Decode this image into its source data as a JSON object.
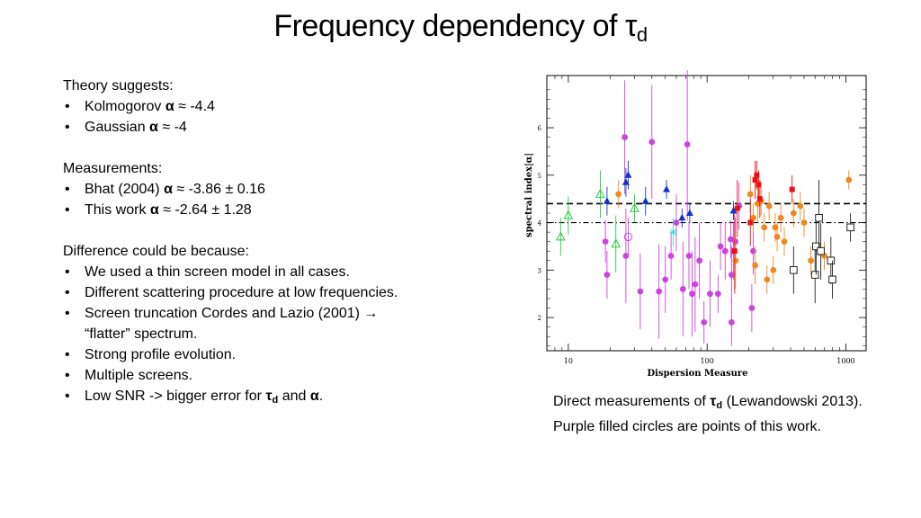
{
  "slide": {
    "title_main": "Frequency dependency of τ",
    "title_sub": "d"
  },
  "theory": {
    "heading": "Theory suggests:",
    "kolmogorov_label": "Kolmogorov ",
    "kolmogorov_alpha": "α",
    "kolmogorov_value": " ≈ -4.4",
    "gaussian_label": "Gaussian ",
    "gaussian_alpha": "α",
    "gaussian_value": " ≈ -4"
  },
  "measurements": {
    "heading": "Measurements:",
    "bhat_label": "Bhat (2004) ",
    "bhat_alpha": "α",
    "bhat_value": " ≈ -3.86 ± 0.16",
    "this_label": "This work ",
    "this_alpha": "α",
    "this_value": " ≈ -2.64 ± 1.28"
  },
  "difference": {
    "heading": "Difference could be because:",
    "items": [
      "We used a thin screen model in all cases.",
      "Different scattering procedure at low frequencies.",
      "Screen truncation Cordes and Lazio (2001) →",
      "“flatter” spectrum.",
      "Strong profile evolution.",
      "Multiple screens."
    ],
    "last_prefix": "Low SNR -> bigger error for ",
    "last_tau": "τ",
    "last_tau_sub": "d",
    "last_mid": " and ",
    "last_alpha": "α",
    "last_end": "."
  },
  "caption": {
    "prefix": "Direct measurements of ",
    "tau": "τ",
    "tau_sub": "d",
    "rest": " (Lewandowski 2013). Purple filled circles are points of this work."
  },
  "chart_data": {
    "type": "scatter",
    "xlabel": "Dispersion Measure",
    "ylabel": "spectral index|α|",
    "xscale": "log",
    "xlim": [
      7,
      1400
    ],
    "ylim": [
      1.3,
      7.1
    ],
    "xticks": [
      10,
      100,
      1000
    ],
    "xtick_labels": [
      "10",
      "100",
      "1000"
    ],
    "yticks": [
      2,
      3,
      4,
      5,
      6
    ],
    "ytick_labels": [
      "2",
      "3",
      "4",
      "5",
      "6"
    ],
    "hlines": [
      {
        "y": 4.4,
        "style": "dashed"
      },
      {
        "y": 4.0,
        "style": "dashdot"
      }
    ],
    "series": [
      {
        "marker": "circle-filled",
        "color": "#cc44dd",
        "points": [
          [
            18.5,
            3.6,
            0.45
          ],
          [
            19,
            2.9,
            0.5
          ],
          [
            25.5,
            5.8,
            1.2
          ],
          [
            26,
            3.3,
            1.0
          ],
          [
            33,
            2.55,
            0.8
          ],
          [
            40,
            5.7,
            1.2
          ],
          [
            45,
            2.55,
            1.0
          ],
          [
            50,
            2.8,
            0.7
          ],
          [
            55,
            3.3,
            0.5
          ],
          [
            60,
            4.0,
            0.6
          ],
          [
            67,
            2.6,
            1.0
          ],
          [
            72,
            5.65,
            1.6
          ],
          [
            74,
            3.3,
            0.7
          ],
          [
            78,
            2.5,
            0.9
          ],
          [
            82,
            2.7,
            1.0
          ],
          [
            88,
            3.2,
            0.8
          ],
          [
            95,
            1.9,
            0.45
          ],
          [
            105,
            2.5,
            0.7
          ],
          [
            120,
            2.5,
            0.4
          ],
          [
            125,
            3.5,
            0.5
          ],
          [
            135,
            3.4,
            0.6
          ],
          [
            148,
            3.65,
            0.4
          ],
          [
            150,
            2.9,
            0.6
          ],
          [
            150,
            1.9,
            0.5
          ],
          [
            155,
            3.4,
            0.6
          ],
          [
            160,
            3.6,
            0.5
          ],
          [
            170,
            4.35,
            0.5
          ],
          [
            210,
            2.2,
            0.5
          ],
          [
            215,
            3.4,
            0.5
          ]
        ]
      },
      {
        "marker": "circle-filled",
        "color": "#ee8822",
        "points": [
          [
            23,
            4.6,
            0.3
          ],
          [
            160,
            3.2,
            0.6
          ],
          [
            205,
            4.6,
            0.4
          ],
          [
            215,
            4.1,
            0.3
          ],
          [
            222,
            3.1,
            0.4
          ],
          [
            232,
            4.4,
            0.4
          ],
          [
            245,
            4.45,
            0.3
          ],
          [
            258,
            3.9,
            0.3
          ],
          [
            270,
            2.8,
            0.3
          ],
          [
            280,
            4.35,
            0.3
          ],
          [
            300,
            3.0,
            0.3
          ],
          [
            310,
            3.9,
            0.3
          ],
          [
            320,
            3.7,
            0.3
          ],
          [
            340,
            4.1,
            0.3
          ],
          [
            360,
            3.6,
            0.3
          ],
          [
            420,
            4.2,
            0.3
          ],
          [
            470,
            4.35,
            0.3
          ],
          [
            500,
            4.0,
            0.3
          ],
          [
            560,
            3.2,
            0.3
          ],
          [
            700,
            3.3,
            0.3
          ],
          [
            1050,
            4.9,
            0.2
          ]
        ]
      },
      {
        "marker": "square-filled",
        "color": "#ee1111",
        "points": [
          [
            158,
            3.4,
            0.9
          ],
          [
            165,
            4.3,
            0.6
          ],
          [
            205,
            4.0,
            0.5
          ],
          [
            222,
            4.9,
            0.4
          ],
          [
            228,
            5.0,
            0.3
          ],
          [
            235,
            4.8,
            0.3
          ],
          [
            240,
            4.5,
            0.4
          ],
          [
            410,
            4.7,
            0.3
          ]
        ]
      },
      {
        "marker": "triangle-filled",
        "color": "#1133cc",
        "points": [
          [
            19,
            4.45,
            0.3
          ],
          [
            26,
            4.85,
            0.3
          ],
          [
            27,
            5.0,
            0.3
          ],
          [
            36,
            4.45,
            0.3
          ],
          [
            51,
            4.7,
            0.2
          ],
          [
            66,
            4.1,
            0.2
          ],
          [
            75,
            4.2,
            0.2
          ],
          [
            155,
            4.25,
            0.2
          ]
        ]
      },
      {
        "marker": "triangle-open",
        "color": "#22cc44",
        "points": [
          [
            8.8,
            3.7,
            0.4
          ],
          [
            10,
            4.15,
            0.4
          ],
          [
            17,
            4.6,
            0.5
          ],
          [
            22,
            3.55,
            0.6
          ],
          [
            30,
            4.3,
            0.3
          ]
        ]
      },
      {
        "marker": "square-open",
        "color": "#222222",
        "points": [
          [
            420,
            3.0,
            0.5
          ],
          [
            600,
            2.9,
            0.6
          ],
          [
            610,
            3.5,
            0.6
          ],
          [
            640,
            4.1,
            0.8
          ],
          [
            660,
            3.4,
            0.6
          ],
          [
            780,
            3.2,
            0.5
          ],
          [
            800,
            2.8,
            0.4
          ],
          [
            1080,
            3.9,
            0.3
          ]
        ]
      },
      {
        "marker": "circle-open",
        "color": "#cc44dd",
        "points": [
          [
            27,
            3.7,
            0.4
          ]
        ]
      },
      {
        "marker": "asterisk",
        "color": "#44dddd",
        "points": [
          [
            57,
            3.8,
            0.3
          ]
        ]
      }
    ]
  }
}
